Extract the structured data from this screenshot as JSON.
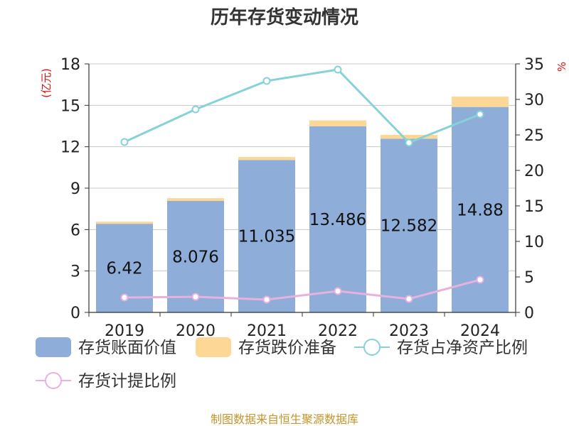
{
  "title": "历年存货变动情况",
  "source": "制图数据来自恒生聚源数据库",
  "chart_data": {
    "type": "bar",
    "categories": [
      "2019",
      "2020",
      "2021",
      "2022",
      "2023",
      "2024"
    ],
    "y_left": {
      "unit": "(亿元)",
      "ylim": [
        0,
        18
      ],
      "ticks": [
        0,
        3,
        6,
        9,
        12,
        15,
        18
      ]
    },
    "y_right": {
      "unit": "%",
      "ylim": [
        0,
        35
      ],
      "ticks": [
        0,
        5,
        10,
        15,
        20,
        25,
        30,
        35
      ]
    },
    "grid": true,
    "legend_position": "bottom",
    "series": [
      {
        "name": "存货账面价值",
        "type": "bar",
        "axis": "left",
        "color": "#8eadd9",
        "values": [
          6.42,
          8.076,
          11.035,
          13.486,
          12.582,
          14.88
        ],
        "labels": [
          "6.42",
          "8.076",
          "11.035",
          "13.486",
          "12.582",
          "14.88"
        ]
      },
      {
        "name": "存货跌价准备",
        "type": "bar-stacked",
        "axis": "left",
        "color": "#fdd795",
        "values": [
          0.15,
          0.2,
          0.22,
          0.42,
          0.28,
          0.75
        ]
      },
      {
        "name": "存货占净资产比例",
        "type": "line",
        "axis": "right",
        "color": "#86d2d6",
        "values": [
          24.0,
          28.6,
          32.6,
          34.2,
          23.9,
          27.9
        ]
      },
      {
        "name": "存货计提比例",
        "type": "line",
        "axis": "right",
        "color": "#e6b2dc",
        "values": [
          2.1,
          2.2,
          1.8,
          3.0,
          1.9,
          4.6
        ]
      }
    ]
  }
}
